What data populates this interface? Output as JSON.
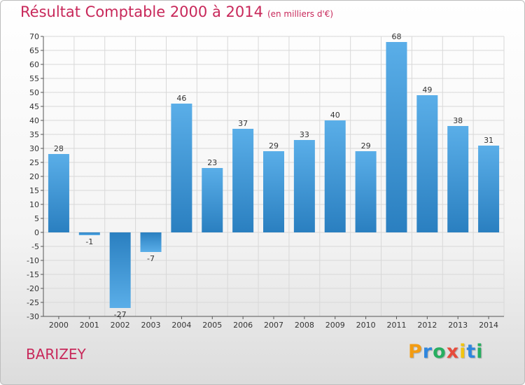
{
  "header": {
    "title": "Résultat Comptable 2000 à 2014",
    "subtitle": "(en milliers d'€)"
  },
  "footer": {
    "commune": "BARIZEY",
    "logo_letters": [
      {
        "ch": "P",
        "color": "#f39c12"
      },
      {
        "ch": "r",
        "color": "#2e86de"
      },
      {
        "ch": "o",
        "color": "#27ae60"
      },
      {
        "ch": "x",
        "color": "#e74c3c"
      },
      {
        "ch": "i",
        "color": "#f1c40f"
      },
      {
        "ch": "t",
        "color": "#2e86de"
      },
      {
        "ch": "i",
        "color": "#27ae60"
      }
    ]
  },
  "chart_data": {
    "type": "bar",
    "title": "Résultat Comptable 2000 à 2014",
    "subtitle": "(en milliers d'€)",
    "categories": [
      "2000",
      "2001",
      "2002",
      "2003",
      "2004",
      "2005",
      "2006",
      "2007",
      "2008",
      "2009",
      "2010",
      "2011",
      "2012",
      "2013",
      "2014"
    ],
    "values": [
      28,
      -1,
      -27,
      -7,
      46,
      23,
      37,
      29,
      33,
      40,
      29,
      68,
      49,
      38,
      31
    ],
    "ylim": [
      -30,
      70
    ],
    "ytick_step": 5,
    "grid": true,
    "bar_color_light": "#5aaee8",
    "bar_color_dark": "#2a7fc0",
    "grid_color": "#d8d8d8"
  }
}
